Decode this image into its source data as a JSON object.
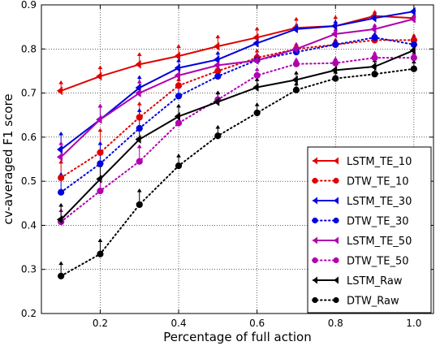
{
  "chart_data": {
    "type": "line",
    "title": "",
    "xlabel": "Percentage of full action",
    "ylabel": "cv-averaged F1 score",
    "xlim": [
      0.05,
      1.05
    ],
    "ylim": [
      0.2,
      0.9
    ],
    "xticks": [
      0.2,
      0.4,
      0.6,
      0.8,
      1.0
    ],
    "xtick_labels": [
      "0.2",
      "0.4",
      "0.6",
      "0.8",
      "1.0"
    ],
    "yticks": [
      0.2,
      0.3,
      0.4,
      0.5,
      0.6,
      0.7,
      0.8,
      0.9
    ],
    "ytick_labels": [
      "0.2",
      "0.3",
      "0.4",
      "0.5",
      "0.6",
      "0.7",
      "0.8",
      "0.9"
    ],
    "grid": true,
    "legend_position": "bottom-right",
    "x": [
      0.1,
      0.2,
      0.3,
      0.4,
      0.5,
      0.6,
      0.7,
      0.8,
      0.9,
      1.0
    ],
    "series": [
      {
        "name": "LSTM_TE_10",
        "color": "#e00000",
        "style": "solid",
        "values": [
          0.705,
          0.738,
          0.765,
          0.784,
          0.806,
          0.826,
          0.848,
          0.852,
          0.875,
          0.87
        ]
      },
      {
        "name": "DTW_TE_10",
        "color": "#e00000",
        "style": "dotted",
        "values": [
          0.508,
          0.565,
          0.645,
          0.717,
          0.75,
          0.78,
          0.8,
          0.81,
          0.82,
          0.82
        ]
      },
      {
        "name": "LSTM_TE_30",
        "color": "#0000e0",
        "style": "solid",
        "values": [
          0.572,
          0.64,
          0.712,
          0.757,
          0.776,
          0.813,
          0.845,
          0.852,
          0.87,
          0.885
        ]
      },
      {
        "name": "DTW_TE_30",
        "color": "#0000e0",
        "style": "dotted",
        "values": [
          0.475,
          0.54,
          0.62,
          0.693,
          0.738,
          0.775,
          0.793,
          0.81,
          0.826,
          0.81
        ]
      },
      {
        "name": "LSTM_TE_50",
        "color": "#b000b0",
        "style": "solid",
        "values": [
          0.555,
          0.64,
          0.7,
          0.74,
          0.763,
          0.774,
          0.8,
          0.834,
          0.845,
          0.868
        ]
      },
      {
        "name": "DTW_TE_50",
        "color": "#b000b0",
        "style": "dotted",
        "values": [
          0.408,
          0.478,
          0.545,
          0.632,
          0.685,
          0.74,
          0.766,
          0.768,
          0.78,
          0.78
        ]
      },
      {
        "name": "LSTM_Raw",
        "color": "#000000",
        "style": "solid",
        "values": [
          0.413,
          0.505,
          0.595,
          0.647,
          0.68,
          0.713,
          0.73,
          0.752,
          0.76,
          0.797
        ]
      },
      {
        "name": "DTW_Raw",
        "color": "#000000",
        "style": "dotted",
        "values": [
          0.285,
          0.335,
          0.447,
          0.535,
          0.603,
          0.655,
          0.707,
          0.733,
          0.743,
          0.755
        ]
      }
    ],
    "error_arrows": [
      {
        "color": "#e00000",
        "x": [
          0.1,
          0.2,
          0.3,
          0.4,
          0.5,
          0.6,
          0.7,
          0.8,
          0.9,
          1.0
        ],
        "low": [
          0.705,
          0.738,
          0.765,
          0.784,
          0.806,
          0.826,
          0.848,
          0.852,
          0.875,
          0.87
        ],
        "high": [
          0.728,
          0.762,
          0.792,
          0.81,
          0.832,
          0.85,
          0.872,
          0.876,
          0.888,
          0.88
        ]
      },
      {
        "color": "#e00000",
        "x": [
          0.1,
          0.2,
          0.3,
          0.4,
          0.5,
          0.6,
          0.7,
          0.8,
          0.9,
          1.0
        ],
        "low": [
          0.508,
          0.565,
          0.645,
          0.717,
          0.75,
          0.78,
          0.8,
          0.81,
          0.82,
          0.82
        ],
        "high": [
          0.548,
          0.62,
          0.68,
          0.735,
          0.77,
          0.8,
          0.815,
          0.825,
          0.835,
          0.835
        ]
      },
      {
        "color": "#0000e0",
        "x": [
          0.1,
          0.2,
          0.3,
          0.4,
          0.5,
          0.6,
          0.7,
          0.8,
          0.9,
          1.0
        ],
        "low": [
          0.572,
          0.64,
          0.712,
          0.757,
          0.776,
          0.813,
          0.845,
          0.852,
          0.87,
          0.885
        ],
        "high": [
          0.612,
          0.675,
          0.74,
          0.778,
          0.795,
          0.832,
          0.858,
          0.866,
          0.882,
          0.893
        ]
      },
      {
        "color": "#0000e0",
        "x": [
          0.1,
          0.2,
          0.3,
          0.4,
          0.5,
          0.6,
          0.7,
          0.8,
          0.9,
          1.0
        ],
        "low": [
          0.475,
          0.54,
          0.62,
          0.693,
          0.738,
          0.775,
          0.793,
          0.81,
          0.826,
          0.81
        ],
        "high": [
          0.52,
          0.59,
          0.665,
          0.72,
          0.758,
          0.79,
          0.808,
          0.822,
          0.838,
          0.83
        ]
      },
      {
        "color": "#b000b0",
        "x": [
          0.1,
          0.2,
          0.3,
          0.4,
          0.5,
          0.6,
          0.7,
          0.8,
          0.9,
          1.0
        ],
        "low": [
          0.555,
          0.64,
          0.7,
          0.74,
          0.763,
          0.774,
          0.8,
          0.834,
          0.845,
          0.868
        ],
        "high": [
          0.59,
          0.675,
          0.73,
          0.76,
          0.782,
          0.792,
          0.815,
          0.848,
          0.858,
          0.878
        ]
      },
      {
        "color": "#b000b0",
        "x": [
          0.1,
          0.2,
          0.3,
          0.4,
          0.5,
          0.6,
          0.7,
          0.8,
          0.9,
          1.0
        ],
        "low": [
          0.408,
          0.478,
          0.545,
          0.632,
          0.685,
          0.74,
          0.766,
          0.768,
          0.78,
          0.78
        ],
        "high": [
          0.438,
          0.512,
          0.583,
          0.655,
          0.705,
          0.758,
          0.78,
          0.782,
          0.795,
          0.795
        ]
      },
      {
        "color": "#000000",
        "x": [
          0.1,
          0.2,
          0.3,
          0.4,
          0.5,
          0.6,
          0.7,
          0.8,
          0.9,
          1.0
        ],
        "low": [
          0.413,
          0.505,
          0.595,
          0.647,
          0.68,
          0.713,
          0.73,
          0.752,
          0.76,
          0.797
        ],
        "high": [
          0.45,
          0.54,
          0.628,
          0.675,
          0.705,
          0.735,
          0.75,
          0.77,
          0.778,
          0.812
        ]
      },
      {
        "color": "#000000",
        "x": [
          0.1,
          0.2,
          0.3,
          0.4,
          0.5,
          0.6,
          0.7,
          0.8,
          0.9,
          1.0
        ],
        "low": [
          0.285,
          0.335,
          0.447,
          0.535,
          0.603,
          0.655,
          0.707,
          0.733,
          0.743,
          0.755
        ],
        "high": [
          0.318,
          0.37,
          0.483,
          0.562,
          0.627,
          0.678,
          0.725,
          0.752,
          0.765,
          0.775
        ]
      }
    ]
  }
}
